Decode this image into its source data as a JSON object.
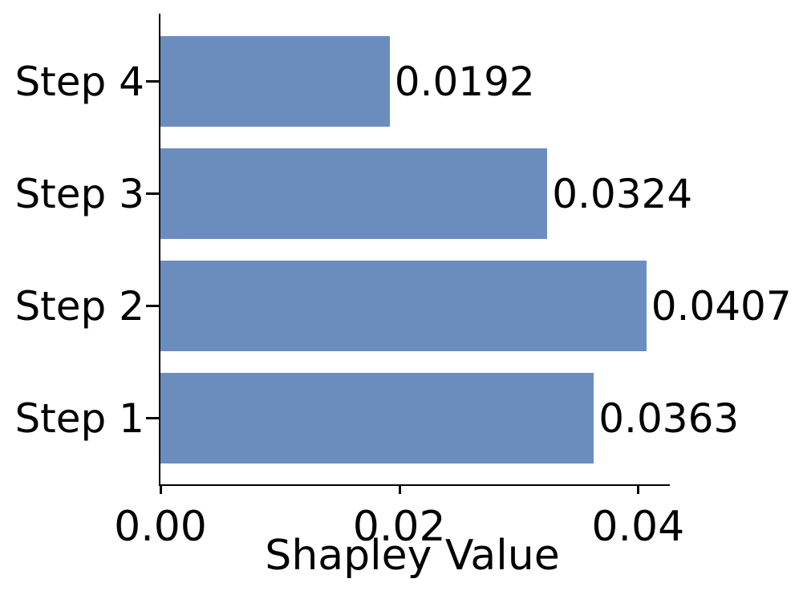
{
  "figure": {
    "background": "#ffffff",
    "axis_color": "#000000",
    "text_color": "#000000"
  },
  "chart_data": {
    "type": "bar",
    "orientation": "horizontal",
    "title": "",
    "xlabel": "Shapley Value",
    "ylabel": "",
    "categories": [
      "Step 4",
      "Step 3",
      "Step 2",
      "Step 1"
    ],
    "values": [
      0.0192,
      0.0324,
      0.0407,
      0.0363
    ],
    "value_labels": [
      "0.0192",
      "0.0324",
      "0.0407",
      "0.0363"
    ],
    "bar_color": "#6B8DBE",
    "xlim": [
      0,
      0.0426
    ],
    "x_ticks": [
      {
        "value": 0.0,
        "label": "0.00"
      },
      {
        "value": 0.02,
        "label": "0.02"
      },
      {
        "value": 0.04,
        "label": "0.04"
      }
    ],
    "grid": false,
    "legend_position": "none"
  }
}
